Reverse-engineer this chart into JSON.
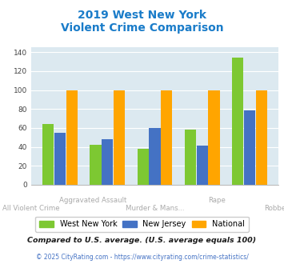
{
  "title_line1": "2019 West New York",
  "title_line2": "Violent Crime Comparison",
  "categories_top": [
    "",
    "Aggravated Assault",
    "",
    "Rape",
    ""
  ],
  "categories_bottom": [
    "All Violent Crime",
    "",
    "Murder & Mans...",
    "",
    "Robbery"
  ],
  "west_new_york": [
    64,
    42,
    38,
    58,
    134
  ],
  "new_jersey": [
    55,
    48,
    60,
    41,
    79
  ],
  "national": [
    100,
    100,
    100,
    100,
    100
  ],
  "colors": {
    "west_new_york": "#7dc832",
    "new_jersey": "#4472c4",
    "national": "#ffa500"
  },
  "ylim": [
    0,
    145
  ],
  "yticks": [
    0,
    20,
    40,
    60,
    80,
    100,
    120,
    140
  ],
  "background_color": "#dce9f0",
  "title_color": "#1a7cc9",
  "footer_text": "Compared to U.S. average. (U.S. average equals 100)",
  "copyright_text": "© 2025 CityRating.com - https://www.cityrating.com/crime-statistics/",
  "legend_labels": [
    "West New York",
    "New Jersey",
    "National"
  ],
  "xlabel_color": "#aaaaaa",
  "footer_color": "#1a1a1a",
  "copyright_color": "#4472c4"
}
